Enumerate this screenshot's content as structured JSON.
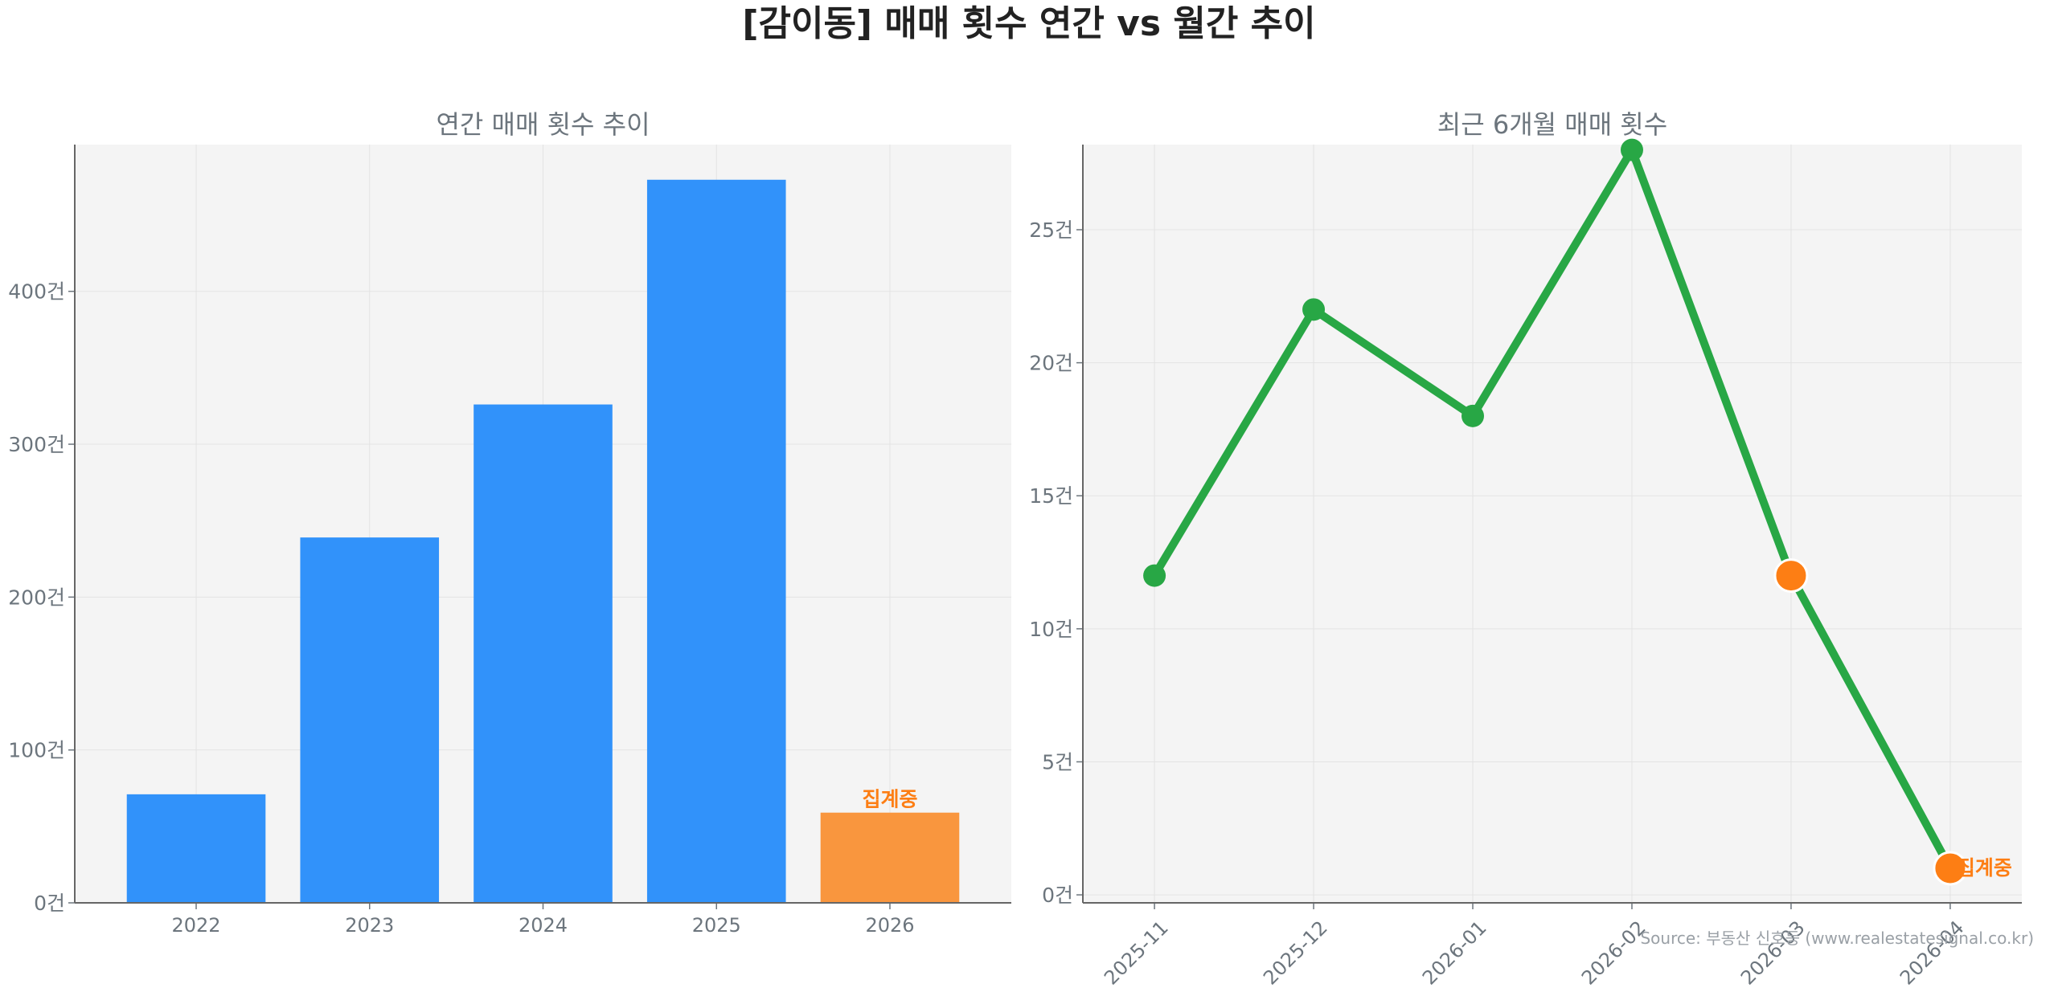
{
  "title": "[감이동] 매매 횟수 연간 vs 월간 추이",
  "source": "Source: 부동산 신호등 (www.realestatesignal.co.kr)",
  "colors": {
    "bar": "#3192fa",
    "bar_pending": "#f9963e",
    "line": "#28a745",
    "point_pending": "#fd7e14",
    "pending_label": "#fd7e14",
    "plot_bg": "#f4f4f4",
    "grid": "#e3e3e3",
    "text": "#6c757d"
  },
  "chart_data": [
    {
      "type": "bar",
      "title": "연간 매매 횟수 추이",
      "categories": [
        "2022",
        "2023",
        "2024",
        "2025",
        "2026"
      ],
      "values": [
        71,
        239,
        326,
        473,
        59
      ],
      "pending": [
        false,
        false,
        false,
        false,
        true
      ],
      "pending_label": "집계중",
      "ylim": [
        0,
        496
      ],
      "yticks": [
        0,
        100,
        200,
        300,
        400
      ],
      "ytick_labels": [
        "0건",
        "100건",
        "200건",
        "300건",
        "400건"
      ],
      "grid": true
    },
    {
      "type": "line",
      "title": "최근 6개월 매매 횟수",
      "categories": [
        "2025-11",
        "2025-12",
        "2026-01",
        "2026-02",
        "2026-03",
        "2026-04"
      ],
      "values": [
        12,
        22,
        18,
        28,
        12,
        1
      ],
      "pending": [
        false,
        false,
        false,
        false,
        true,
        true
      ],
      "pending_label": "집계중",
      "ylim": [
        -0.3,
        28.2
      ],
      "yticks": [
        0,
        5,
        10,
        15,
        20,
        25
      ],
      "ytick_labels": [
        "0건",
        "5건",
        "10건",
        "15건",
        "20건",
        "25건"
      ],
      "grid": true
    }
  ]
}
